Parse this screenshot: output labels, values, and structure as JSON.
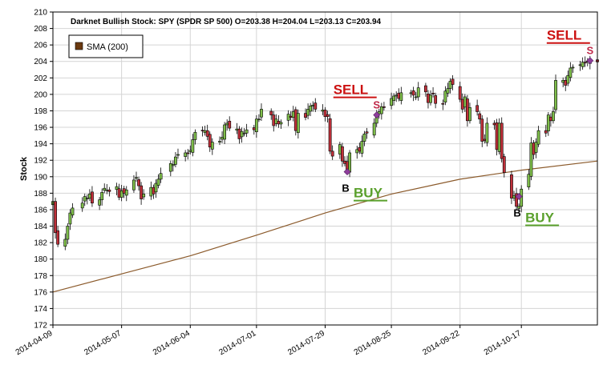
{
  "chart_data": {
    "type": "candlestick",
    "title": "Darknet Bullish Stock: SPY (SPDR SP 500) O=203.38  H=204.04  L=203.13  C=203.94",
    "ylabel": "Stock",
    "xlabel": "",
    "ylim": [
      172,
      210
    ],
    "yticks": [
      172,
      174,
      176,
      178,
      180,
      182,
      184,
      186,
      188,
      190,
      192,
      194,
      196,
      198,
      200,
      202,
      204,
      206,
      208,
      210
    ],
    "x_start": "2014-04-09",
    "x_end": "2014-11-17",
    "xticks": [
      "2014-04-09",
      "2014-05-07",
      "2014-06-04",
      "2014-07-01",
      "2014-07-29",
      "2014-08-25",
      "2014-09-22",
      "2014-10-17"
    ],
    "grid": true,
    "legend": {
      "placement": "top-left",
      "entries": [
        {
          "name": "SMA (200)",
          "color": "#6b3a10"
        }
      ]
    },
    "colors": {
      "up": "#7fbf4a",
      "down": "#c0303a",
      "sma": "#8b5a2b",
      "marker": "#8e3e9b",
      "buy": "#5aa02c",
      "sell": "#cc1111"
    },
    "closes": [
      [
        "2014-04-09",
        187.0
      ],
      [
        "2014-04-10",
        183.2
      ],
      [
        "2014-04-11",
        181.8
      ],
      [
        "2014-04-14",
        182.4
      ],
      [
        "2014-04-15",
        184.0
      ],
      [
        "2014-04-16",
        185.6
      ],
      [
        "2014-04-17",
        186.2
      ],
      [
        "2014-04-21",
        186.8
      ],
      [
        "2014-04-22",
        187.6
      ],
      [
        "2014-04-23",
        187.4
      ],
      [
        "2014-04-24",
        187.9
      ],
      [
        "2014-04-25",
        186.8
      ],
      [
        "2014-04-28",
        187.2
      ],
      [
        "2014-04-29",
        188.1
      ],
      [
        "2014-04-30",
        188.6
      ],
      [
        "2014-05-01",
        188.4
      ],
      [
        "2014-05-02",
        188.2
      ],
      [
        "2014-05-05",
        188.8
      ],
      [
        "2014-05-06",
        187.5
      ],
      [
        "2014-05-07",
        188.3
      ],
      [
        "2014-05-08",
        188.0
      ],
      [
        "2014-05-09",
        188.4
      ],
      [
        "2014-05-12",
        189.6
      ],
      [
        "2014-05-13",
        189.9
      ],
      [
        "2014-05-14",
        188.9
      ],
      [
        "2014-05-15",
        187.3
      ],
      [
        "2014-05-16",
        187.9
      ],
      [
        "2014-05-19",
        188.7
      ],
      [
        "2014-05-20",
        187.9
      ],
      [
        "2014-05-21",
        189.2
      ],
      [
        "2014-05-22",
        189.7
      ],
      [
        "2014-05-23",
        190.4
      ],
      [
        "2014-05-27",
        191.6
      ],
      [
        "2014-05-28",
        191.5
      ],
      [
        "2014-05-29",
        192.4
      ],
      [
        "2014-05-30",
        192.7
      ],
      [
        "2014-06-02",
        192.9
      ],
      [
        "2014-06-03",
        192.8
      ],
      [
        "2014-06-04",
        193.2
      ],
      [
        "2014-06-05",
        194.5
      ],
      [
        "2014-06-06",
        195.4
      ],
      [
        "2014-06-09",
        195.6
      ],
      [
        "2014-06-10",
        195.6
      ],
      [
        "2014-06-11",
        194.9
      ],
      [
        "2014-06-12",
        193.6
      ],
      [
        "2014-06-13",
        194.2
      ],
      [
        "2014-06-16",
        194.3
      ],
      [
        "2014-06-17",
        194.8
      ],
      [
        "2014-06-18",
        196.3
      ],
      [
        "2014-06-19",
        196.5
      ],
      [
        "2014-06-20",
        195.9
      ],
      [
        "2014-06-23",
        195.8
      ],
      [
        "2014-06-24",
        194.6
      ],
      [
        "2014-06-25",
        195.5
      ],
      [
        "2014-06-26",
        195.3
      ],
      [
        "2014-06-27",
        195.7
      ],
      [
        "2014-06-30",
        195.7
      ],
      [
        "2014-07-01",
        197.0
      ],
      [
        "2014-07-02",
        197.0
      ],
      [
        "2014-07-03",
        198.2
      ],
      [
        "2014-07-07",
        197.5
      ],
      [
        "2014-07-08",
        196.2
      ],
      [
        "2014-07-09",
        197.0
      ],
      [
        "2014-07-10",
        196.4
      ],
      [
        "2014-07-11",
        196.6
      ],
      [
        "2014-07-14",
        197.6
      ],
      [
        "2014-07-15",
        197.2
      ],
      [
        "2014-07-16",
        197.9
      ],
      [
        "2014-07-17",
        195.6
      ],
      [
        "2014-07-18",
        197.7
      ],
      [
        "2014-07-21",
        197.2
      ],
      [
        "2014-07-22",
        198.2
      ],
      [
        "2014-07-23",
        198.6
      ],
      [
        "2014-07-24",
        198.7
      ],
      [
        "2014-07-25",
        198.2
      ],
      [
        "2014-07-28",
        198.1
      ],
      [
        "2014-07-29",
        197.3
      ],
      [
        "2014-07-30",
        197.3
      ],
      [
        "2014-07-31",
        193.1
      ],
      [
        "2014-08-01",
        192.5
      ],
      [
        "2014-08-04",
        193.9
      ],
      [
        "2014-08-05",
        191.9
      ],
      [
        "2014-08-06",
        191.6
      ],
      [
        "2014-08-07",
        190.8
      ],
      [
        "2014-08-08",
        192.9
      ],
      [
        "2014-08-11",
        193.3
      ],
      [
        "2014-08-12",
        193.1
      ],
      [
        "2014-08-13",
        194.3
      ],
      [
        "2014-08-14",
        195.2
      ],
      [
        "2014-08-15",
        195.3
      ],
      [
        "2014-08-18",
        196.5
      ],
      [
        "2014-08-19",
        197.4
      ],
      [
        "2014-08-20",
        197.9
      ],
      [
        "2014-08-21",
        198.5
      ],
      [
        "2014-08-22",
        198.4
      ],
      [
        "2014-08-25",
        199.5
      ],
      [
        "2014-08-26",
        199.8
      ],
      [
        "2014-08-27",
        199.9
      ],
      [
        "2014-08-28",
        199.5
      ],
      [
        "2014-08-29",
        200.2
      ],
      [
        "2014-09-02",
        200.2
      ],
      [
        "2014-09-03",
        199.9
      ],
      [
        "2014-09-04",
        199.7
      ],
      [
        "2014-09-05",
        200.8
      ],
      [
        "2014-09-08",
        200.3
      ],
      [
        "2014-09-09",
        199.0
      ],
      [
        "2014-09-10",
        199.9
      ],
      [
        "2014-09-11",
        200.1
      ],
      [
        "2014-09-12",
        198.9
      ],
      [
        "2014-09-15",
        198.8
      ],
      [
        "2014-09-16",
        200.4
      ],
      [
        "2014-09-17",
        200.7
      ],
      [
        "2014-09-18",
        201.6
      ],
      [
        "2014-09-19",
        201.2
      ],
      [
        "2014-09-22",
        199.4
      ],
      [
        "2014-09-23",
        198.2
      ],
      [
        "2014-09-24",
        199.7
      ],
      [
        "2014-09-25",
        196.8
      ],
      [
        "2014-09-26",
        198.4
      ],
      [
        "2014-09-29",
        197.9
      ],
      [
        "2014-09-30",
        197.0
      ],
      [
        "2014-10-01",
        194.3
      ],
      [
        "2014-10-02",
        194.4
      ],
      [
        "2014-10-03",
        196.5
      ],
      [
        "2014-10-06",
        196.3
      ],
      [
        "2014-10-07",
        193.3
      ],
      [
        "2014-10-08",
        196.5
      ],
      [
        "2014-10-09",
        192.2
      ],
      [
        "2014-10-10",
        190.5
      ],
      [
        "2014-10-13",
        187.4
      ],
      [
        "2014-10-14",
        187.7
      ],
      [
        "2014-10-15",
        186.4
      ],
      [
        "2014-10-16",
        186.4
      ],
      [
        "2014-10-17",
        188.5
      ],
      [
        "2014-10-20",
        190.3
      ],
      [
        "2014-10-21",
        194.1
      ],
      [
        "2014-10-22",
        192.7
      ],
      [
        "2014-10-23",
        194.2
      ],
      [
        "2014-10-24",
        195.6
      ],
      [
        "2014-10-27",
        195.3
      ],
      [
        "2014-10-28",
        197.5
      ],
      [
        "2014-10-29",
        196.8
      ],
      [
        "2014-10-30",
        197.9
      ],
      [
        "2014-10-31",
        201.7
      ],
      [
        "2014-11-03",
        201.7
      ],
      [
        "2014-11-04",
        201.1
      ],
      [
        "2014-11-05",
        202.3
      ],
      [
        "2014-11-06",
        203.2
      ],
      [
        "2014-11-07",
        203.3
      ],
      [
        "2014-11-10",
        203.6
      ],
      [
        "2014-11-11",
        203.9
      ],
      [
        "2014-11-12",
        203.8
      ],
      [
        "2014-11-13",
        204.0
      ],
      [
        "2014-11-14",
        204.2
      ],
      [
        "2014-11-17",
        203.94
      ]
    ],
    "sma200": [
      [
        "2014-04-09",
        176.0
      ],
      [
        "2014-05-07",
        178.2
      ],
      [
        "2014-06-04",
        180.4
      ],
      [
        "2014-07-01",
        182.9
      ],
      [
        "2014-07-29",
        185.6
      ],
      [
        "2014-08-25",
        187.9
      ],
      [
        "2014-09-22",
        189.7
      ],
      [
        "2014-10-17",
        190.8
      ],
      [
        "2014-11-17",
        191.9
      ]
    ],
    "signals": [
      {
        "type": "buy",
        "date": "2014-08-07",
        "price": 190.6,
        "letter": "B",
        "label": "BUY"
      },
      {
        "type": "sell",
        "date": "2014-08-19",
        "price": 197.5,
        "letter": "S",
        "label": "SELL"
      },
      {
        "type": "buy",
        "date": "2014-10-16",
        "price": 187.6,
        "letter": "B",
        "label": "BUY"
      },
      {
        "type": "sell",
        "date": "2014-11-14",
        "price": 204.1,
        "letter": "S",
        "label": "SELL"
      }
    ]
  }
}
